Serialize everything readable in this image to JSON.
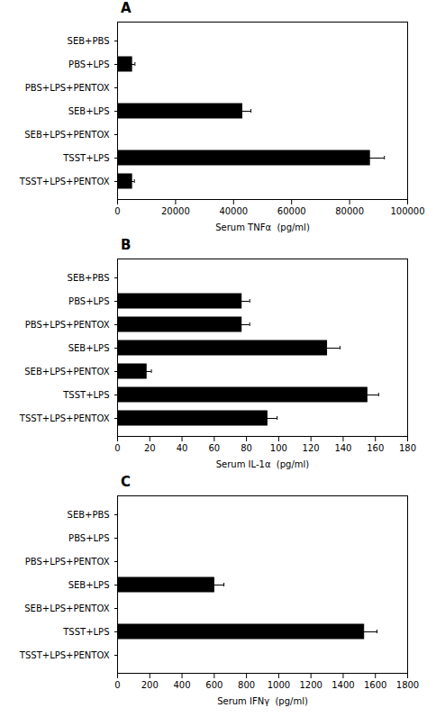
{
  "chart_data": [
    {
      "type": "bar",
      "orientation": "horizontal",
      "title": "A",
      "categories": [
        "SEB+PBS",
        "PBS+LPS",
        "PBS+LPS+PENTOX",
        "SEB+LPS",
        "SEB+LPS+PENTOX",
        "TSST+LPS",
        "TSST+LPS+PENTOX"
      ],
      "values": [
        0,
        5000,
        0,
        43000,
        0,
        87000,
        5000
      ],
      "errors": [
        0,
        1000,
        0,
        3000,
        0,
        5000,
        800
      ],
      "xlabel": "Serum TNFα  (pg/ml)",
      "xlim": [
        0,
        100000
      ],
      "xticks": [
        0,
        20000,
        40000,
        60000,
        80000,
        100000
      ],
      "color": "#000000",
      "grid": false
    },
    {
      "type": "bar",
      "orientation": "horizontal",
      "title": "B",
      "categories": [
        "SEB+PBS",
        "PBS+LPS",
        "PBS+LPS+PENTOX",
        "SEB+LPS",
        "SEB+LPS+PENTOX",
        "TSST+LPS",
        "TSST+LPS+PENTOX"
      ],
      "values": [
        0,
        77,
        77,
        130,
        18,
        155,
        93
      ],
      "errors": [
        0,
        5,
        5,
        8,
        3,
        7,
        6
      ],
      "xlabel": "Serum IL-1α  (pg/ml)",
      "xlim": [
        0,
        180
      ],
      "xticks": [
        0,
        20,
        40,
        60,
        80,
        100,
        120,
        140,
        160,
        180
      ],
      "color": "#000000",
      "grid": false
    },
    {
      "type": "bar",
      "orientation": "horizontal",
      "title": "C",
      "categories": [
        "SEB+PBS",
        "PBS+LPS",
        "PBS+LPS+PENTOX",
        "SEB+LPS",
        "SEB+LPS+PENTOX",
        "TSST+LPS",
        "TSST+LPS+PENTOX"
      ],
      "values": [
        0,
        0,
        0,
        600,
        0,
        1530,
        0
      ],
      "errors": [
        0,
        0,
        0,
        60,
        0,
        80,
        0
      ],
      "xlabel": "Serum IFNγ  (pg/ml)",
      "xlim": [
        0,
        1800
      ],
      "xticks": [
        0,
        200,
        400,
        600,
        800,
        1000,
        1200,
        1400,
        1600,
        1800
      ],
      "color": "#000000",
      "grid": false
    }
  ]
}
